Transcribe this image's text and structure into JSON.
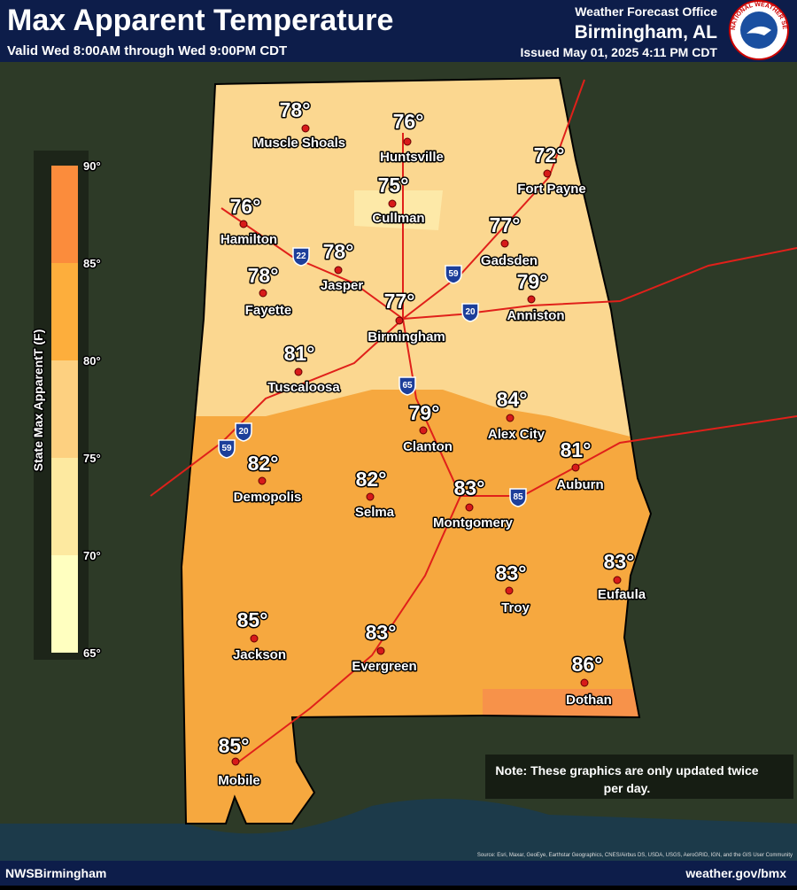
{
  "header": {
    "title": "Max Apparent Temperature",
    "subtitle": "Valid Wed 8:00AM through Wed 9:00PM CDT",
    "office": "Weather Forecast Office",
    "location": "Birmingham, AL",
    "issued": "Issued May 01, 2025 4:11 PM CDT",
    "logo_text": "NATIONAL WEATHER SERVICE"
  },
  "legend": {
    "title": "State Max ApparentT (F)",
    "ticks": [
      "90°",
      "85°",
      "80°",
      "75°",
      "70°",
      "65°"
    ]
  },
  "interstates": [
    "22",
    "59",
    "20",
    "65",
    "20",
    "59",
    "85"
  ],
  "cities": [
    {
      "name": "Muscle Shoals",
      "temp": "78°"
    },
    {
      "name": "Huntsville",
      "temp": "76°"
    },
    {
      "name": "Fort Payne",
      "temp": "72°"
    },
    {
      "name": "Cullman",
      "temp": "75°"
    },
    {
      "name": "Hamilton",
      "temp": "76°"
    },
    {
      "name": "Gadsden",
      "temp": "77°"
    },
    {
      "name": "Jasper",
      "temp": "78°"
    },
    {
      "name": "Fayette",
      "temp": "78°"
    },
    {
      "name": "Anniston",
      "temp": "79°"
    },
    {
      "name": "Birmingham",
      "temp": "77°"
    },
    {
      "name": "Tuscaloosa",
      "temp": "81°"
    },
    {
      "name": "Alex City",
      "temp": "84°"
    },
    {
      "name": "Clanton",
      "temp": "79°"
    },
    {
      "name": "Auburn",
      "temp": "81°"
    },
    {
      "name": "Demopolis",
      "temp": "82°"
    },
    {
      "name": "Selma",
      "temp": "82°"
    },
    {
      "name": "Montgomery",
      "temp": "83°"
    },
    {
      "name": "Troy",
      "temp": "83°"
    },
    {
      "name": "Eufaula",
      "temp": "83°"
    },
    {
      "name": "Jackson",
      "temp": "85°"
    },
    {
      "name": "Evergreen",
      "temp": "83°"
    },
    {
      "name": "Dothan",
      "temp": "86°"
    },
    {
      "name": "Mobile",
      "temp": "85°"
    }
  ],
  "note": "Note: These graphics are only updated twice per day.",
  "source": "Source: Esri, Maxar, GeoEye, Earthstar Geographics, CNES/Airbus DS, USDA, USGS, AeroGRID, IGN, and the GIS User Community",
  "footer": {
    "left": "NWSBirmingham",
    "right": "weather.gov/bmx"
  }
}
